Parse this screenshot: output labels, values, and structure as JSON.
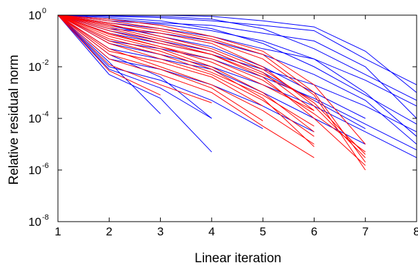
{
  "chart_data": {
    "type": "line",
    "title": "",
    "xlabel": "Linear iteration",
    "ylabel": "Relative residual norm",
    "xlim": [
      1,
      8
    ],
    "ylim": [
      1e-08,
      1
    ],
    "yscale": "log",
    "grid": false,
    "legend": "none",
    "x_ticks": [
      1,
      2,
      3,
      4,
      5,
      6,
      7,
      8
    ],
    "y_ticks": [
      {
        "value": 1,
        "base": "10",
        "exp": "0"
      },
      {
        "value": 0.01,
        "base": "10",
        "exp": "-2"
      },
      {
        "value": 0.0001,
        "base": "10",
        "exp": "-4"
      },
      {
        "value": 1e-06,
        "base": "10",
        "exp": "-6"
      },
      {
        "value": 1e-08,
        "base": "10",
        "exp": "-8"
      }
    ],
    "series": [
      {
        "color": "#0000ff",
        "values": [
          1,
          0.2,
          0.08,
          0.03,
          0.008,
          0.002,
          0.0003,
          3e-05
        ]
      },
      {
        "color": "#0000ff",
        "values": [
          1,
          0.5,
          0.3,
          0.15,
          0.05,
          0.02,
          0.003,
          0.0003
        ]
      },
      {
        "color": "#0000ff",
        "values": [
          1,
          0.9,
          0.8,
          0.6,
          0.4,
          0.25,
          0.02,
          0.002
        ]
      },
      {
        "color": "#0000ff",
        "values": [
          1,
          1,
          1,
          0.9,
          0.6,
          0.35,
          0.04,
          0.001
        ]
      },
      {
        "color": "#0000ff",
        "values": [
          1,
          0.7,
          0.5,
          0.4,
          0.2,
          0.1,
          0.01,
          0.0001
        ]
      },
      {
        "color": "#0000ff",
        "values": [
          1,
          0.3,
          0.2,
          0.1,
          0.03,
          0.005,
          0.0005,
          1e-05
        ]
      },
      {
        "color": "#0000ff",
        "values": [
          1,
          0.6,
          0.45,
          0.25,
          0.1,
          0.02,
          0.001,
          2e-05
        ]
      },
      {
        "color": "#0000ff",
        "values": [
          1,
          0.1,
          0.05,
          0.02,
          0.004,
          0.0006,
          6e-05,
          6e-06
        ]
      },
      {
        "color": "#0000ff",
        "values": [
          1,
          0.95,
          0.9,
          0.7,
          0.3,
          0.05,
          0.005,
          0.0005
        ]
      },
      {
        "color": "#0000ff",
        "values": [
          1,
          0.4,
          0.15,
          0.06,
          0.01,
          0.001,
          0.0001
        ]
      },
      {
        "color": "#0000ff",
        "values": [
          1,
          0.05,
          0.02,
          0.008,
          0.001,
          0.0001,
          1e-05
        ]
      },
      {
        "color": "#0000ff",
        "values": [
          1,
          0.02,
          0.008,
          0.002,
          0.0003,
          3e-05
        ]
      },
      {
        "color": "#0000ff",
        "values": [
          1,
          0.01,
          0.003,
          0.0005,
          4e-05
        ]
      },
      {
        "color": "#0000ff",
        "values": [
          1,
          0.008,
          0.0015,
          0.0001
        ]
      },
      {
        "color": "#0000ff",
        "values": [
          1,
          0.005,
          0.0006,
          5e-06
        ]
      },
      {
        "color": "#0000ff",
        "values": [
          1,
          0.015,
          0.00015
        ]
      },
      {
        "color": "#0000ff",
        "values": [
          1,
          0.03,
          0.004,
          0.0001
        ]
      },
      {
        "color": "#0000ff",
        "values": [
          1,
          0.08,
          0.03,
          0.01,
          0.002,
          0.0003,
          3e-05,
          3e-06
        ]
      },
      {
        "color": "#0000ff",
        "values": [
          1,
          0.8,
          0.6,
          0.3,
          0.08,
          0.01,
          0.0008,
          6e-05
        ]
      },
      {
        "color": "#0000ff",
        "values": [
          1,
          0.25,
          0.1,
          0.04,
          0.006,
          0.0005,
          4e-05
        ]
      },
      {
        "color": "#ff0000",
        "values": [
          1,
          0.3,
          0.1,
          0.03,
          0.005,
          0.0005
        ]
      },
      {
        "color": "#ff0000",
        "values": [
          1,
          0.2,
          0.06,
          0.015,
          0.002,
          0.0002
        ]
      },
      {
        "color": "#ff0000",
        "values": [
          1,
          0.1,
          0.03,
          0.006,
          0.0008,
          5e-05
        ]
      },
      {
        "color": "#ff0000",
        "values": [
          1,
          0.05,
          0.01,
          0.002,
          0.0002,
          1e-05
        ]
      },
      {
        "color": "#ff0000",
        "values": [
          1,
          0.02,
          0.005,
          0.001,
          5e-05,
          3e-06
        ]
      },
      {
        "color": "#ff0000",
        "values": [
          1,
          0.4,
          0.2,
          0.08,
          0.01,
          0.0003,
          3e-06
        ]
      },
      {
        "color": "#ff0000",
        "values": [
          1,
          0.5,
          0.25,
          0.1,
          0.02,
          0.0008,
          1e-06
        ]
      },
      {
        "color": "#ff0000",
        "values": [
          1,
          0.6,
          0.3,
          0.12,
          0.03,
          0.001,
          2e-06
        ]
      },
      {
        "color": "#ff0000",
        "values": [
          1,
          0.15,
          0.05,
          0.01,
          0.001,
          3e-05
        ]
      },
      {
        "color": "#ff0000",
        "values": [
          1,
          0.08,
          0.02,
          0.005,
          0.0005,
          2e-05
        ]
      },
      {
        "color": "#ff0000",
        "values": [
          1,
          0.03,
          0.008,
          0.0015,
          8e-05
        ]
      },
      {
        "color": "#ff0000",
        "values": [
          1,
          0.012,
          0.002,
          0.0004
        ]
      },
      {
        "color": "#ff0000",
        "values": [
          1,
          0.007,
          0.0008
        ]
      },
      {
        "color": "#ff0000",
        "values": [
          1,
          0.25,
          0.08,
          0.03,
          0.004,
          0.0001,
          1.5e-06
        ]
      },
      {
        "color": "#ff0000",
        "values": [
          1,
          0.35,
          0.12,
          0.04,
          0.006,
          0.0002
        ]
      },
      {
        "color": "#ff0000",
        "values": [
          1,
          0.7,
          0.4,
          0.15,
          0.04,
          0.002,
          1e-05
        ]
      },
      {
        "color": "#ff0000",
        "values": [
          1,
          0.45,
          0.15,
          0.05,
          0.008,
          0.0004,
          4e-06
        ]
      },
      {
        "color": "#ff0000",
        "values": [
          1,
          0.04,
          0.015,
          0.004,
          0.0003
        ]
      },
      {
        "color": "#ff0000",
        "values": [
          1,
          0.12,
          0.04,
          0.008,
          0.0006,
          8e-06
        ]
      },
      {
        "color": "#ff0000",
        "values": [
          1,
          0.18,
          0.06,
          0.02,
          0.003,
          0.00015,
          5e-06
        ]
      }
    ]
  }
}
